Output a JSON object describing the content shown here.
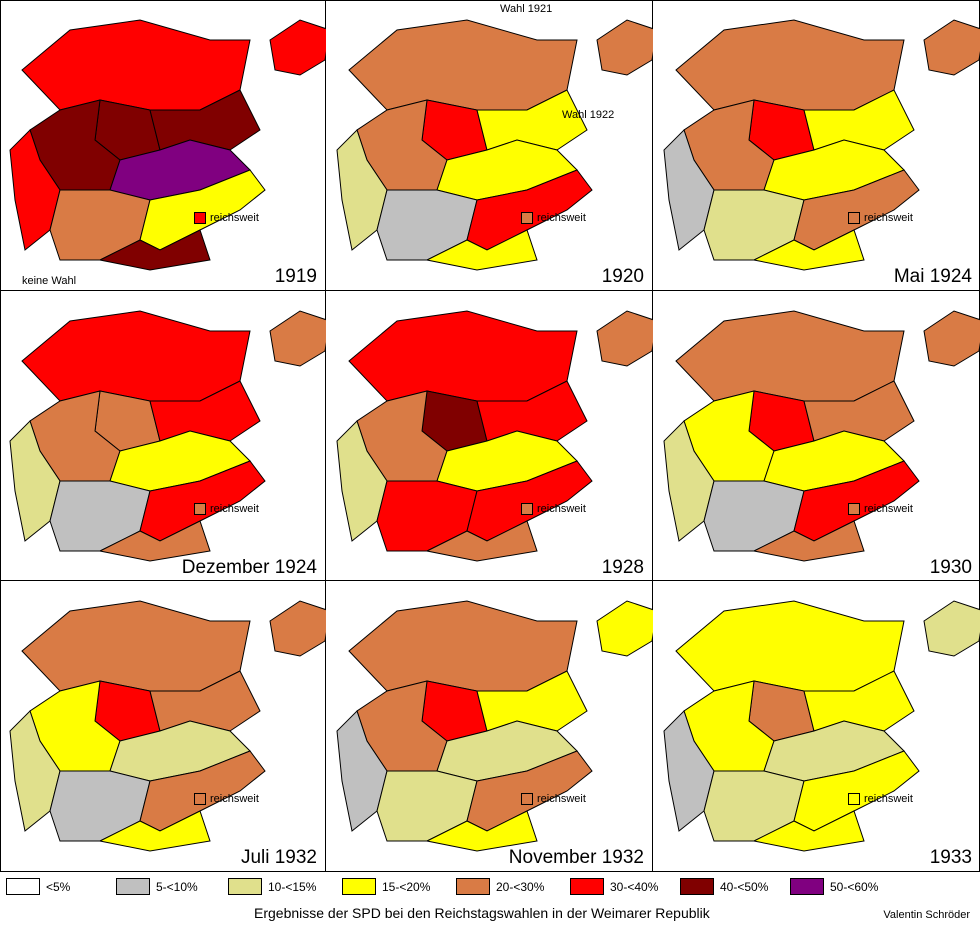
{
  "colors": {
    "c0": "#ffffff",
    "c5": "#c0c0c0",
    "c10": "#e0e08c",
    "c15": "#ffff00",
    "c20": "#d97b45",
    "c30": "#ff0000",
    "c40": "#800000",
    "c50": "#800080"
  },
  "panels": [
    {
      "label": "1919",
      "nationwide": "reichsweit",
      "nationwide_color": "c30",
      "palette": [
        "c30",
        "c40",
        "c40",
        "c40",
        "c50",
        "c30",
        "c20",
        "c15",
        "c40",
        "c30"
      ]
    },
    {
      "label": "1920",
      "nationwide": "reichsweit",
      "nationwide_color": "c20",
      "palette": [
        "c20",
        "c30",
        "c15",
        "c20",
        "c15",
        "c10",
        "c5",
        "c30",
        "c15",
        "c20"
      ]
    },
    {
      "label": "Mai 1924",
      "nationwide": "reichsweit",
      "nationwide_color": "c20",
      "palette": [
        "c20",
        "c30",
        "c15",
        "c20",
        "c15",
        "c5",
        "c10",
        "c20",
        "c15",
        "c20"
      ]
    },
    {
      "label": "Dezember 1924",
      "nationwide": "reichsweit",
      "nationwide_color": "c20",
      "palette": [
        "c30",
        "c20",
        "c30",
        "c20",
        "c15",
        "c10",
        "c5",
        "c30",
        "c20",
        "c20"
      ]
    },
    {
      "label": "1928",
      "nationwide": "reichsweit",
      "nationwide_color": "c20",
      "palette": [
        "c30",
        "c40",
        "c30",
        "c20",
        "c15",
        "c10",
        "c30",
        "c30",
        "c20",
        "c20"
      ]
    },
    {
      "label": "1930",
      "nationwide": "reichsweit",
      "nationwide_color": "c20",
      "palette": [
        "c20",
        "c30",
        "c20",
        "c15",
        "c15",
        "c10",
        "c5",
        "c30",
        "c20",
        "c20"
      ]
    },
    {
      "label": "Juli 1932",
      "nationwide": "reichsweit",
      "nationwide_color": "c20",
      "palette": [
        "c20",
        "c30",
        "c20",
        "c15",
        "c10",
        "c10",
        "c5",
        "c20",
        "c15",
        "c20"
      ]
    },
    {
      "label": "November 1932",
      "nationwide": "reichsweit",
      "nationwide_color": "c20",
      "palette": [
        "c20",
        "c30",
        "c15",
        "c20",
        "c10",
        "c5",
        "c10",
        "c20",
        "c15",
        "c15"
      ]
    },
    {
      "label": "1933",
      "nationwide": "reichsweit",
      "nationwide_color": "c15",
      "palette": [
        "c15",
        "c20",
        "c15",
        "c15",
        "c10",
        "c5",
        "c10",
        "c15",
        "c15",
        "c10"
      ]
    }
  ],
  "notes": {
    "no_vote": "keine Wahl",
    "vote_1921": "Wahl 1921",
    "vote_1922": "Wahl 1922"
  },
  "legend": [
    {
      "key": "c0",
      "label": "<5%"
    },
    {
      "key": "c5",
      "label": "5-<10%"
    },
    {
      "key": "c10",
      "label": "10-<15%"
    },
    {
      "key": "c15",
      "label": "15-<20%"
    },
    {
      "key": "c20",
      "label": "20-<30%"
    },
    {
      "key": "c30",
      "label": "30-<40%"
    },
    {
      "key": "c40",
      "label": "40-<50%"
    },
    {
      "key": "c50",
      "label": "50-<60%"
    }
  ],
  "caption": "Ergebnisse der SPD bei den Reichstagswahlen in der Weimarer Republik",
  "credit": "Valentin Schröder"
}
